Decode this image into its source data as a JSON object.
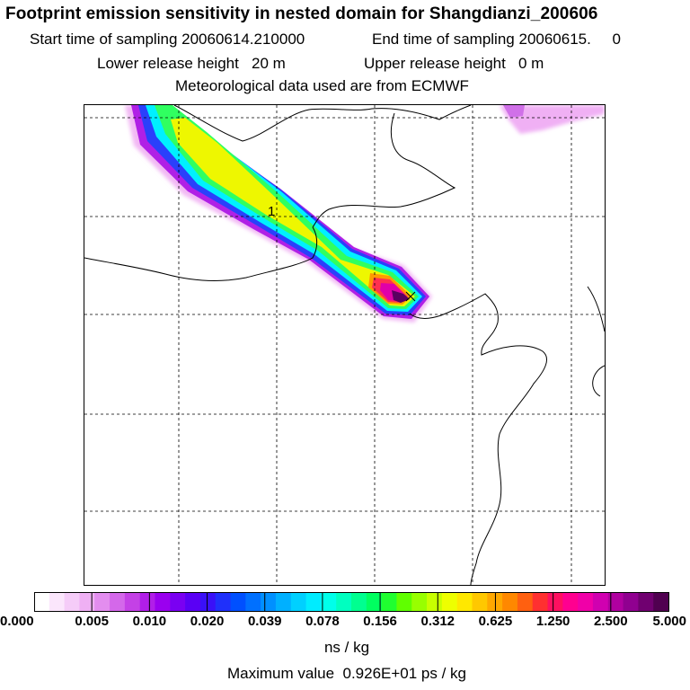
{
  "header": {
    "title": "Footprint emission sensitivity in nested domain for Shangdianzi_200606",
    "start_label": "Start time of sampling",
    "start_value": "20060614.210000",
    "end_label": "End time of sampling",
    "end_value": "20060615.     0",
    "lower_label": "Lower release height",
    "lower_value": "20 m",
    "upper_label": "Upper release height",
    "upper_value": "0 m",
    "met_text": "Meteorological data used are from ECMWF"
  },
  "map": {
    "release_marker": "1",
    "gridline_color": "#000000",
    "coastline_color": "#000000"
  },
  "colorbar": {
    "tick_labels": [
      "0.000",
      "0.005",
      "0.010",
      "0.020",
      "0.039",
      "0.078",
      "0.156",
      "0.312",
      "0.625",
      "1.250",
      "2.500",
      "5.000"
    ],
    "colors": [
      "#ffffff",
      "#fbe6fc",
      "#f5ccf8",
      "#efb0f4",
      "#e38def",
      "#d468ea",
      "#c441e6",
      "#b11ee8",
      "#9a00ef",
      "#7a00f2",
      "#5a00f5",
      "#3a10f8",
      "#1f30fb",
      "#0050ff",
      "#0070ff",
      "#0090ff",
      "#00b0ff",
      "#00d0ff",
      "#00ecff",
      "#00ffea",
      "#00ffc0",
      "#00ff90",
      "#00ff60",
      "#20ff30",
      "#60ff00",
      "#98ff00",
      "#c8ff00",
      "#eeff00",
      "#ffe800",
      "#ffc800",
      "#ffa800",
      "#ff8800",
      "#ff6010",
      "#ff3030",
      "#ff1060",
      "#ff0090",
      "#f000a8",
      "#d000b0",
      "#b000a0",
      "#900090",
      "#700070",
      "#500050"
    ],
    "units": "ns / kg",
    "max_label": "Maximum value",
    "max_value": "0.926E+01 ps / kg"
  }
}
